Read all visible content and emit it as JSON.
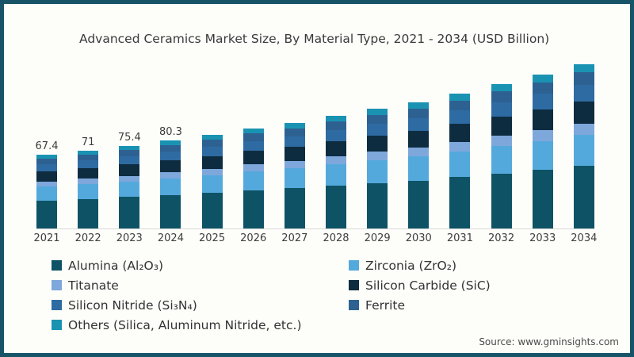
{
  "title": "Advanced Ceramics Market Size, By Material Type, 2021 - 2034 (USD Billion)",
  "source_text": "Source: www.gminsights.com",
  "colors": {
    "alumina": "#0e5365",
    "zirconia": "#54a9dc",
    "titanate": "#7ea7db",
    "silicon_carbide": "#0e2c40",
    "silicon_nitride": "#2e6ba2",
    "ferrite": "#2d6191",
    "others": "#1a93b3",
    "frame_border": "#175468",
    "background": "#fdfdfa",
    "axis_line": "#d9d9d9",
    "text": "#3a3a3a"
  },
  "legend": {
    "items": [
      {
        "key": "alumina",
        "label": "Alumina (Al₂O₃)"
      },
      {
        "key": "zirconia",
        "label": "Zirconia (ZrO₂)"
      },
      {
        "key": "titanate",
        "label": "Titanate"
      },
      {
        "key": "silicon_carbide",
        "label": "Silicon Carbide (SiC)"
      },
      {
        "key": "silicon_nitride",
        "label": "Silicon Nitride (Si₃N₄)"
      },
      {
        "key": "ferrite",
        "label": "Ferrite"
      },
      {
        "key": "others",
        "label": "Others (Silica, Aluminum Nitride, etc.)"
      }
    ]
  },
  "chart_data": {
    "type": "bar",
    "stacked": true,
    "title": "Advanced Ceramics Market Size, By Material Type, 2021 - 2034 (USD Billion)",
    "xlabel": "",
    "ylabel": "USD Billion",
    "ylim": [
      0,
      160
    ],
    "y_axis_visible": false,
    "grid": false,
    "legend_position": "bottom",
    "legend_columns": 2,
    "categories": [
      "2021",
      "2022",
      "2023",
      "2024",
      "2025",
      "2026",
      "2027",
      "2028",
      "2029",
      "2030",
      "2031",
      "2032",
      "2033",
      "2034"
    ],
    "total_labels": [
      "67.4",
      "71",
      "75.4",
      "80.3",
      "",
      "",
      "",
      "",
      "",
      "",
      "",
      "",
      "",
      ""
    ],
    "totals_estimated": [
      67.4,
      71,
      75.4,
      80.3,
      85.5,
      91.3,
      96.4,
      103,
      109.4,
      115.2,
      123.2,
      132,
      140.6,
      150
    ],
    "series": [
      {
        "name": "Alumina (Al₂O₃)",
        "color_key": "alumina",
        "values": [
          25.6,
          27.0,
          28.7,
          30.6,
          32.5,
          34.8,
          36.8,
          39.1,
          41.6,
          43.8,
          46.8,
          50.2,
          53.4,
          57.0
        ]
      },
      {
        "name": "Zirconia (ZrO₂)",
        "color_key": "zirconia",
        "values": [
          12.8,
          13.5,
          14.3,
          15.3,
          16.2,
          17.3,
          18.3,
          19.6,
          20.8,
          21.9,
          23.4,
          25.1,
          26.7,
          28.5
        ]
      },
      {
        "name": "Titanate",
        "color_key": "titanate",
        "values": [
          4.7,
          5.0,
          5.2,
          5.6,
          6.0,
          6.4,
          6.7,
          7.2,
          7.7,
          8.0,
          8.6,
          9.2,
          9.8,
          10.5
        ]
      },
      {
        "name": "Silicon Carbide (SiC)",
        "color_key": "silicon_carbide",
        "values": [
          9.1,
          9.6,
          10.2,
          10.8,
          11.5,
          12.3,
          13.0,
          13.9,
          14.8,
          15.6,
          16.6,
          17.8,
          19.0,
          20.3
        ]
      },
      {
        "name": "Silicon Nitride (Si₃N₄)",
        "color_key": "silicon_nitride",
        "values": [
          6.7,
          7.1,
          7.5,
          8.0,
          8.6,
          9.1,
          9.6,
          10.3,
          10.9,
          11.5,
          12.3,
          13.2,
          14.1,
          15.0
        ]
      },
      {
        "name": "Ferrite",
        "color_key": "ferrite",
        "values": [
          5.1,
          5.3,
          5.7,
          6.0,
          6.4,
          6.8,
          7.2,
          7.7,
          8.2,
          8.6,
          9.2,
          9.9,
          10.5,
          11.3
        ]
      },
      {
        "name": "Others (Silica, Aluminum Nitride, etc.)",
        "color_key": "others",
        "values": [
          3.4,
          3.5,
          3.8,
          4.0,
          4.3,
          4.6,
          4.8,
          5.2,
          5.4,
          5.8,
          6.3,
          6.6,
          7.1,
          7.4
        ]
      }
    ]
  }
}
